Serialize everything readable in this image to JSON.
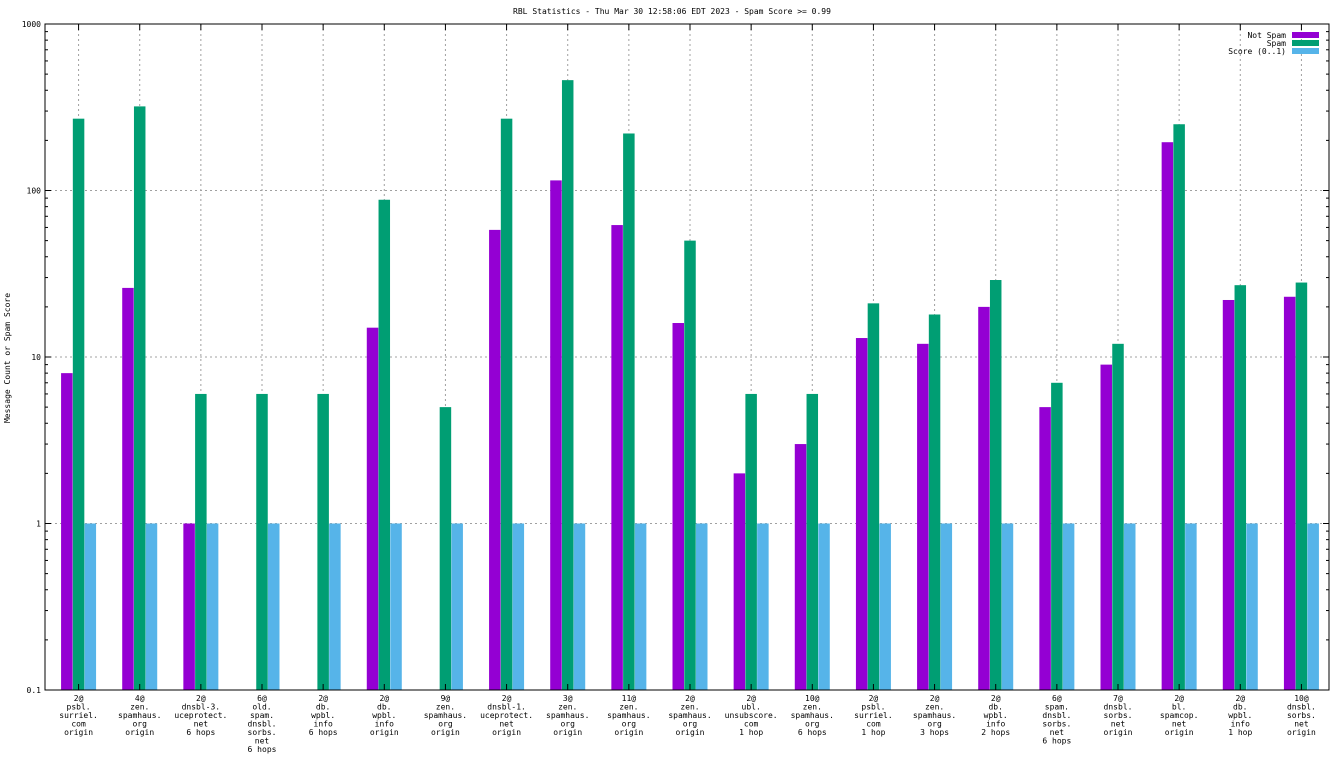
{
  "chart_data": {
    "type": "bar",
    "title": "RBL Statistics - Thu Mar 30 12:58:06 EDT 2023 - Spam Score >= 0.99",
    "xlabel": "",
    "ylabel": "Message Count or Spam Score",
    "yscale": "log",
    "ylim": [
      0.1,
      1000
    ],
    "yticks": [
      "0.1",
      "1",
      "10",
      "100",
      "1000"
    ],
    "grid": true,
    "legend_position": "top-right",
    "categories": [
      [
        "2@",
        "psbl.",
        "surriel.",
        "com",
        "origin"
      ],
      [
        "4@",
        "zen.",
        "spamhaus.",
        "org",
        "origin"
      ],
      [
        "2@",
        "dnsbl-3.",
        "uceprotect.",
        "net",
        "6 hops"
      ],
      [
        "6@",
        "old.",
        "spam.",
        "dnsbl.",
        "sorbs.",
        "net",
        "6 hops"
      ],
      [
        "2@",
        "db.",
        "wpbl.",
        "info",
        "6 hops"
      ],
      [
        "2@",
        "db.",
        "wpbl.",
        "info",
        "origin"
      ],
      [
        "9@",
        "zen.",
        "spamhaus.",
        "org",
        "origin"
      ],
      [
        "2@",
        "dnsbl-1.",
        "uceprotect.",
        "net",
        "origin"
      ],
      [
        "3@",
        "zen.",
        "spamhaus.",
        "org",
        "origin"
      ],
      [
        "11@",
        "zen.",
        "spamhaus.",
        "org",
        "origin"
      ],
      [
        "2@",
        "zen.",
        "spamhaus.",
        "org",
        "origin"
      ],
      [
        "2@",
        "ubl.",
        "unsubscore.",
        "com",
        "1 hop"
      ],
      [
        "10@",
        "zen.",
        "spamhaus.",
        "org",
        "6 hops"
      ],
      [
        "2@",
        "psbl.",
        "surriel.",
        "com",
        "1 hop"
      ],
      [
        "2@",
        "zen.",
        "spamhaus.",
        "org",
        "3 hops"
      ],
      [
        "2@",
        "db.",
        "wpbl.",
        "info",
        "2 hops"
      ],
      [
        "6@",
        "spam.",
        "dnsbl.",
        "sorbs.",
        "net",
        "6 hops"
      ],
      [
        "7@",
        "dnsbl.",
        "sorbs.",
        "net",
        "origin"
      ],
      [
        "2@",
        "bl.",
        "spamcop.",
        "net",
        "origin"
      ],
      [
        "2@",
        "db.",
        "wpbl.",
        "info",
        "1 hop"
      ],
      [
        "10@",
        "dnsbl.",
        "sorbs.",
        "net",
        "origin"
      ]
    ],
    "series": [
      {
        "name": "Not Spam",
        "color": "#9400d3",
        "values": [
          8,
          26,
          1,
          null,
          null,
          15,
          null,
          58,
          115,
          62,
          16,
          2,
          3,
          13,
          12,
          20,
          5,
          9,
          195,
          22,
          23
        ]
      },
      {
        "name": "Spam",
        "color": "#009e73",
        "values": [
          270,
          320,
          6,
          6,
          6,
          88,
          5,
          270,
          460,
          220,
          50,
          6,
          6,
          21,
          18,
          29,
          7,
          12,
          250,
          27,
          28
        ]
      },
      {
        "name": "Score (0..1)",
        "color": "#56b4e9",
        "values": [
          1,
          1,
          1,
          1,
          1,
          1,
          1,
          1,
          1,
          1,
          1,
          1,
          1,
          1,
          1,
          1,
          1,
          1,
          1,
          1,
          1
        ]
      }
    ]
  }
}
